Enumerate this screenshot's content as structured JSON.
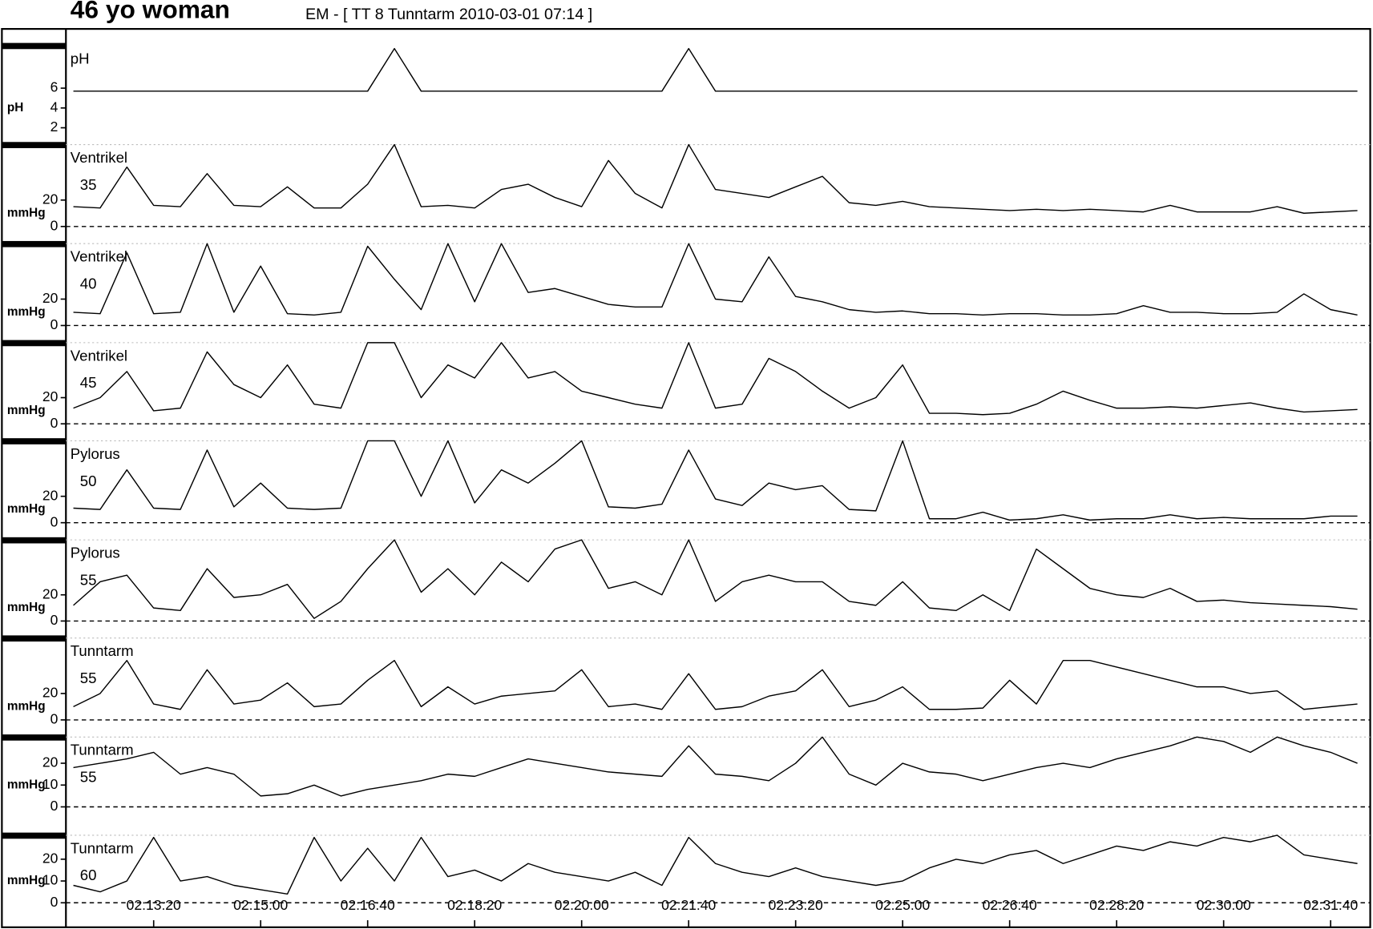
{
  "chart_data": {
    "type": "line",
    "title": "46 yo woman",
    "subtitle": "EM - [ TT 8 Tunntarm 2010-03-01 07:14 ]",
    "color": "#000000",
    "x": [
      7925,
      7950,
      7975,
      8000,
      8025,
      8050,
      8075,
      8100,
      8125,
      8150,
      8175,
      8200,
      8225,
      8250,
      8275,
      8300,
      8325,
      8350,
      8375,
      8400,
      8425,
      8450,
      8475,
      8500,
      8525,
      8550,
      8575,
      8600,
      8625,
      8650,
      8675,
      8700,
      8725,
      8750,
      8775,
      8800,
      8825,
      8850,
      8875,
      8900,
      8925,
      8950,
      8975,
      9000,
      9025,
      9050,
      9075,
      9100,
      9125
    ],
    "xlim": [
      7918,
      9137
    ],
    "xticks": [
      {
        "value": 8000,
        "label": "02:13:20"
      },
      {
        "value": 8100,
        "label": "02:15:00"
      },
      {
        "value": 8200,
        "label": "02:16:40"
      },
      {
        "value": 8300,
        "label": "02:18:20"
      },
      {
        "value": 8400,
        "label": "02:20:00"
      },
      {
        "value": 8500,
        "label": "02:21:40"
      },
      {
        "value": 8600,
        "label": "02:23:20"
      },
      {
        "value": 8700,
        "label": "02:25:00"
      },
      {
        "value": 8800,
        "label": "02:26:40"
      },
      {
        "value": 8900,
        "label": "02:28:20"
      },
      {
        "value": 9000,
        "label": "02:30:00"
      },
      {
        "value": 9100,
        "label": "02:31:40"
      }
    ],
    "series": [
      {
        "name": "pH",
        "unit": "pH",
        "ylim": [
          0.3,
          10.3
        ],
        "yticks": [
          2,
          4,
          6
        ],
        "values": [
          5.7,
          5.7,
          5.7,
          5.7,
          5.7,
          5.7,
          5.7,
          5.7,
          5.7,
          5.7,
          5.7,
          5.7,
          10,
          5.7,
          5.7,
          5.7,
          5.7,
          5.7,
          5.7,
          5.7,
          5.7,
          5.7,
          5.7,
          10,
          5.7,
          5.7,
          5.7,
          5.7,
          5.7,
          5.7,
          5.7,
          5.7,
          5.7,
          5.7,
          5.7,
          5.7,
          5.7,
          5.7,
          5.7,
          5.7,
          5.7,
          5.7,
          5.7,
          5.7,
          5.7,
          5.7,
          5.7,
          5.7,
          5.7
        ]
      },
      {
        "name": "Ventrikel",
        "position": 35,
        "unit": "mmHg",
        "ylim": [
          -13,
          62
        ],
        "yticks": [
          0,
          20
        ],
        "values": [
          15,
          14,
          45,
          16,
          15,
          40,
          16,
          15,
          30,
          14,
          14,
          32,
          62,
          15,
          16,
          14,
          28,
          32,
          22,
          15,
          50,
          25,
          14,
          62,
          28,
          25,
          22,
          30,
          38,
          18,
          16,
          19,
          15,
          14,
          13,
          12,
          13,
          12,
          13,
          12,
          11,
          16,
          11,
          11,
          11,
          15,
          10,
          11,
          12
        ]
      },
      {
        "name": "Ventrikel",
        "position": 40,
        "unit": "mmHg",
        "ylim": [
          -13,
          62
        ],
        "yticks": [
          0,
          20
        ],
        "values": [
          10,
          9,
          55,
          9,
          10,
          62,
          10,
          45,
          9,
          8,
          10,
          60,
          35,
          12,
          62,
          18,
          62,
          25,
          28,
          22,
          16,
          14,
          14,
          62,
          20,
          18,
          52,
          22,
          18,
          12,
          10,
          11,
          9,
          9,
          8,
          9,
          9,
          8,
          8,
          9,
          15,
          10,
          10,
          9,
          9,
          10,
          24,
          12,
          8
        ]
      },
      {
        "name": "Ventrikel",
        "position": 45,
        "unit": "mmHg",
        "ylim": [
          -13,
          62
        ],
        "yticks": [
          0,
          20
        ],
        "values": [
          12,
          20,
          40,
          10,
          12,
          55,
          30,
          20,
          45,
          15,
          12,
          62,
          62,
          20,
          45,
          35,
          62,
          35,
          40,
          25,
          20,
          15,
          12,
          62,
          12,
          15,
          50,
          40,
          25,
          12,
          20,
          45,
          8,
          8,
          7,
          8,
          15,
          25,
          18,
          12,
          12,
          13,
          12,
          14,
          16,
          12,
          9,
          10,
          11
        ]
      },
      {
        "name": "Pylorus",
        "position": 50,
        "unit": "mmHg",
        "ylim": [
          -13,
          62
        ],
        "yticks": [
          0,
          20
        ],
        "values": [
          11,
          10,
          40,
          11,
          10,
          55,
          12,
          30,
          11,
          10,
          11,
          62,
          62,
          20,
          62,
          15,
          40,
          30,
          45,
          62,
          12,
          11,
          14,
          55,
          18,
          13,
          30,
          25,
          28,
          10,
          9,
          62,
          3,
          3,
          8,
          2,
          3,
          6,
          2,
          3,
          3,
          6,
          3,
          4,
          3,
          3,
          3,
          5,
          5
        ]
      },
      {
        "name": "Pylorus",
        "position": 55,
        "unit": "mmHg",
        "ylim": [
          -13,
          62
        ],
        "yticks": [
          0,
          20
        ],
        "values": [
          12,
          30,
          35,
          10,
          8,
          40,
          18,
          20,
          28,
          2,
          15,
          40,
          62,
          22,
          40,
          20,
          45,
          30,
          55,
          62,
          25,
          30,
          20,
          62,
          15,
          30,
          35,
          30,
          30,
          15,
          12,
          30,
          10,
          8,
          20,
          8,
          55,
          40,
          25,
          20,
          18,
          25,
          15,
          16,
          14,
          13,
          12,
          11,
          9
        ]
      },
      {
        "name": "Tunntarm",
        "position": 55,
        "unit": "mmHg",
        "ylim": [
          -13,
          62
        ],
        "yticks": [
          0,
          20
        ],
        "values": [
          10,
          20,
          45,
          12,
          8,
          38,
          12,
          15,
          28,
          10,
          12,
          30,
          45,
          10,
          25,
          12,
          18,
          20,
          22,
          38,
          10,
          12,
          8,
          35,
          8,
          10,
          18,
          22,
          38,
          10,
          15,
          25,
          8,
          8,
          9,
          30,
          12,
          45,
          45,
          40,
          35,
          30,
          25,
          25,
          20,
          22,
          8,
          10,
          12
        ]
      },
      {
        "name": "Tunntarm",
        "position": 55,
        "unit": "mmHg",
        "ylim": [
          -13,
          32
        ],
        "yticks": [
          0,
          10,
          20
        ],
        "values": [
          18,
          20,
          22,
          25,
          15,
          18,
          15,
          5,
          6,
          10,
          5,
          8,
          10,
          12,
          15,
          14,
          18,
          22,
          20,
          18,
          16,
          15,
          14,
          28,
          15,
          14,
          12,
          20,
          32,
          15,
          10,
          20,
          16,
          15,
          12,
          15,
          18,
          20,
          18,
          22,
          25,
          28,
          32,
          30,
          25,
          32,
          28,
          25,
          20
        ]
      },
      {
        "name": "Tunntarm",
        "position": 60,
        "unit": "mmHg",
        "ylim": [
          -6,
          31
        ],
        "yticks": [
          0,
          10,
          20
        ],
        "values": [
          8,
          5,
          10,
          30,
          10,
          12,
          8,
          6,
          4,
          30,
          10,
          25,
          10,
          30,
          12,
          15,
          10,
          18,
          14,
          12,
          10,
          14,
          8,
          30,
          18,
          14,
          12,
          16,
          12,
          10,
          8,
          10,
          16,
          20,
          18,
          22,
          24,
          18,
          22,
          26,
          24,
          28,
          26,
          30,
          28,
          31,
          22,
          20,
          18
        ]
      }
    ]
  }
}
